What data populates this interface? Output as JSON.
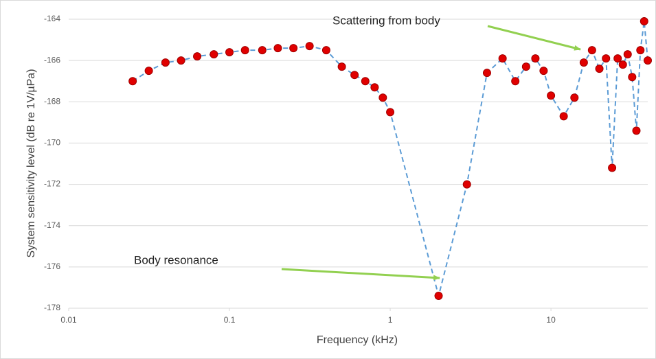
{
  "chart_data": {
    "type": "line",
    "x_title": "Frequency (kHz)",
    "y_title": "System sensitivity level (dB re 1V/µPa)",
    "log_x": true,
    "grid": true,
    "xlim": [
      0.01,
      40
    ],
    "xticks": [
      0.01,
      0.1,
      1,
      10
    ],
    "ylim": [
      -178,
      -164
    ],
    "yticks": [
      -178,
      -176,
      -174,
      -172,
      -170,
      -168,
      -166,
      -164
    ],
    "annotations": [
      "Scattering from body",
      "Body resonance"
    ],
    "series": [
      {
        "line_color": "#5b9bd5",
        "color": "#e00000",
        "x": [
          0.025,
          0.0315,
          0.04,
          0.05,
          0.063,
          0.08,
          0.1,
          0.125,
          0.16,
          0.2,
          0.25,
          0.315,
          0.4,
          0.5,
          0.6,
          0.7,
          0.8,
          0.9,
          1,
          2,
          3,
          4,
          5,
          6,
          7,
          8,
          9,
          10,
          12,
          14,
          16,
          18,
          20,
          22,
          24,
          26,
          28,
          30,
          32,
          34,
          36,
          38,
          40
        ],
        "values": [
          -167.0,
          -166.5,
          -166.1,
          -166.0,
          -165.8,
          -165.7,
          -165.6,
          -165.5,
          -165.5,
          -165.4,
          -165.4,
          -165.3,
          -165.5,
          -166.3,
          -166.7,
          -167.0,
          -167.3,
          -167.8,
          -168.5,
          -177.4,
          -172.0,
          -166.6,
          -165.9,
          -167.0,
          -166.3,
          -165.9,
          -166.5,
          -167.7,
          -168.7,
          -167.8,
          -166.1,
          -165.5,
          -166.4,
          -165.9,
          -171.2,
          -165.9,
          -166.2,
          -165.7,
          -166.8,
          -169.4,
          -165.5,
          -164.1,
          -166.0
        ]
      }
    ]
  }
}
